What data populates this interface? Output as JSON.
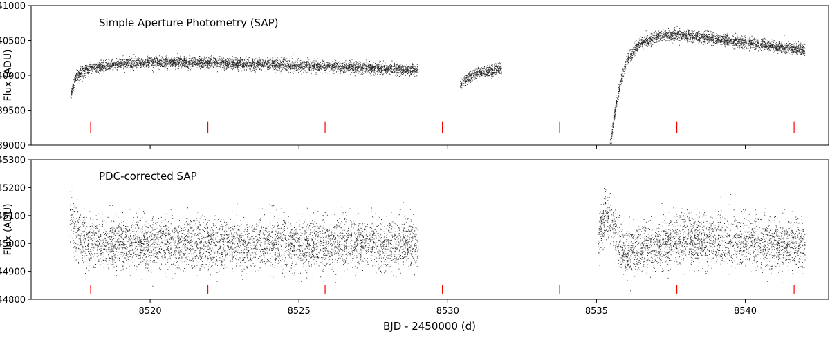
{
  "chart_data": [
    {
      "type": "scatter",
      "title": "Simple Aperture Photometry (SAP)",
      "ylabel": "Flux (ADU)",
      "xlabel": "",
      "xlim": [
        8516.0,
        8542.8
      ],
      "ylim": [
        39000,
        41000
      ],
      "xticks": [
        8520,
        8525,
        8530,
        8535,
        8540
      ],
      "xtick_labels": [],
      "yticks": [
        39000,
        39500,
        40000,
        40500,
        41000
      ],
      "ytick_labels": [
        "39000",
        "39500",
        "40000",
        "40500",
        "41000"
      ],
      "grid": false,
      "marker_color": "#000000",
      "series": [
        {
          "segment": "orbit-1",
          "trend": [
            [
              8517.32,
              39720
            ],
            [
              8517.5,
              39990
            ],
            [
              8517.8,
              40080
            ],
            [
              8518.3,
              40130
            ],
            [
              8519.0,
              40170
            ],
            [
              8520.0,
              40190
            ],
            [
              8522.0,
              40180
            ],
            [
              8524.0,
              40160
            ],
            [
              8526.0,
              40130
            ],
            [
              8527.5,
              40110
            ],
            [
              8529.0,
              40080
            ]
          ],
          "scatter": 40
        },
        {
          "segment": "orbit-2",
          "trend": [
            [
              8530.4,
              39850
            ],
            [
              8530.6,
              39950
            ],
            [
              8531.0,
              40030
            ],
            [
              8531.5,
              40080
            ],
            [
              8531.8,
              40100
            ]
          ],
          "scatter": 40
        },
        {
          "segment": "orbit-3",
          "trend": [
            [
              8535.45,
              39000
            ],
            [
              8535.6,
              39450
            ],
            [
              8535.8,
              39900
            ],
            [
              8536.0,
              40200
            ],
            [
              8536.4,
              40450
            ],
            [
              8537.0,
              40560
            ],
            [
              8537.6,
              40580
            ],
            [
              8538.5,
              40550
            ],
            [
              8539.5,
              40500
            ],
            [
              8540.5,
              40450
            ],
            [
              8541.5,
              40390
            ],
            [
              8542.0,
              40370
            ]
          ],
          "scatter": 40
        }
      ],
      "markers": {
        "x": [
          8518.0,
          8521.94,
          8525.88,
          8529.82,
          8533.76,
          8537.7,
          8541.64
        ],
        "y_range": [
          39170,
          39340
        ],
        "color": "#ff0000"
      }
    },
    {
      "type": "scatter",
      "title": "PDC-corrected SAP",
      "ylabel": "Flux (ADU)",
      "xlabel": "BJD - 2450000 (d)",
      "xlim": [
        8516.0,
        8542.8
      ],
      "ylim": [
        44800,
        45300
      ],
      "xticks": [
        8520,
        8525,
        8530,
        8535,
        8540
      ],
      "xtick_labels": [
        "8520",
        "8525",
        "8530",
        "8535",
        "8540"
      ],
      "yticks": [
        44800,
        44900,
        45000,
        45100,
        45200,
        45300
      ],
      "ytick_labels": [
        "44800",
        "44900",
        "45000",
        "45100",
        "45200",
        "45300"
      ],
      "grid": false,
      "marker_color": "#000000",
      "series": [
        {
          "segment": "orbit-1",
          "trend": [
            [
              8517.3,
              45120
            ],
            [
              8517.5,
              45040
            ],
            [
              8517.8,
              45010
            ],
            [
              8520.0,
              45000
            ],
            [
              8524.0,
              45000
            ],
            [
              8529.0,
              45000
            ]
          ],
          "scatter": 45
        },
        {
          "segment": "orbit-3",
          "trend": [
            [
              8535.05,
              45020
            ],
            [
              8535.3,
              45110
            ],
            [
              8535.6,
              45050
            ],
            [
              8535.9,
              44960
            ],
            [
              8536.3,
              44980
            ],
            [
              8538.0,
              45010
            ],
            [
              8540.0,
              45005
            ],
            [
              8542.0,
              44995
            ]
          ],
          "scatter": 45
        }
      ],
      "markers": {
        "x": [
          8518.0,
          8521.94,
          8525.88,
          8529.82,
          8533.76,
          8537.7,
          8541.64
        ],
        "y_range": [
          44820,
          44850
        ],
        "color": "#ff0000"
      }
    }
  ]
}
